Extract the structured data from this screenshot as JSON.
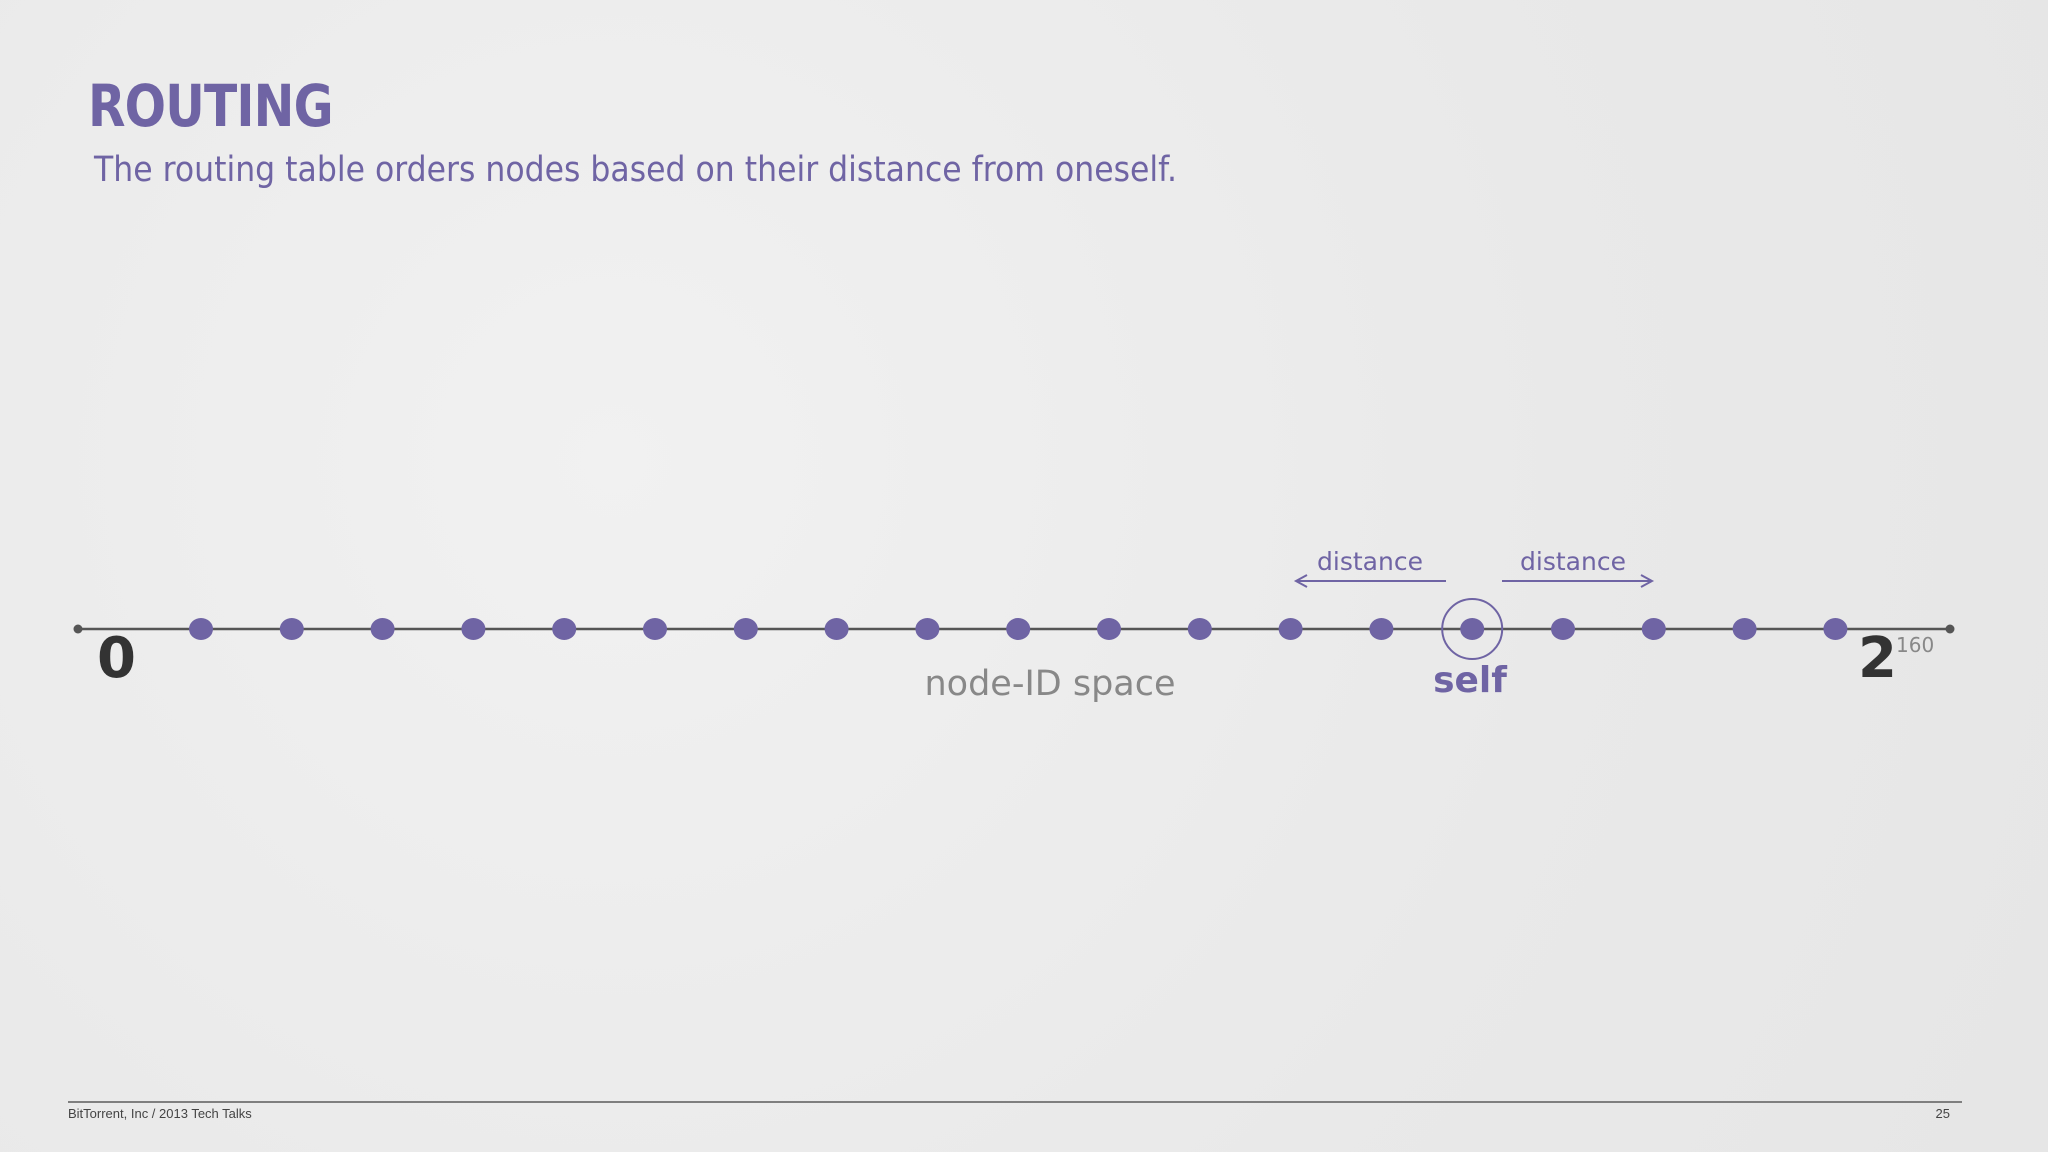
{
  "slide": {
    "title": "ROUTING",
    "subtitle": "The routing table orders nodes based on their distance from oneself."
  },
  "diagram": {
    "axis_label": "node-ID space",
    "start_label": "0",
    "end_base": "2",
    "end_exponent": "160",
    "self_label": "self",
    "distance_left_label": "distance",
    "distance_right_label": "distance",
    "node_count": 19,
    "self_index": 14,
    "colors": {
      "accent": "#6f64a4",
      "line": "#555555",
      "text_dark": "#333333",
      "text_muted": "#888888"
    }
  },
  "footer": {
    "text": "BitTorrent, Inc / 2013 Tech Talks",
    "page": "25"
  }
}
